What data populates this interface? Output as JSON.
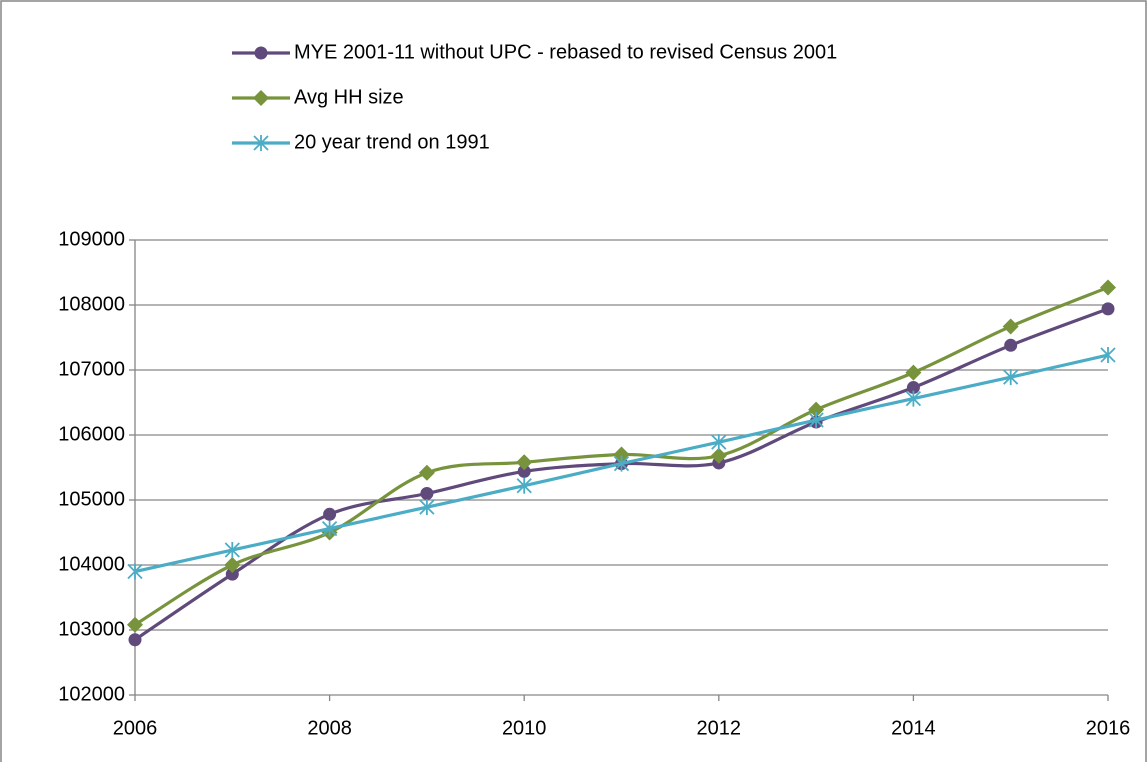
{
  "chart_data": {
    "type": "line",
    "x": [
      2006,
      2007,
      2008,
      2009,
      2010,
      2011,
      2012,
      2013,
      2014,
      2015,
      2016
    ],
    "series": [
      {
        "name": "MYE 2001-11 without UPC - rebased to revised Census 2001",
        "color": "#604a7b",
        "marker": "circle",
        "values": [
          102850,
          103860,
          104780,
          105100,
          105440,
          105560,
          105570,
          106200,
          106730,
          107380,
          107940
        ]
      },
      {
        "name": "Avg HH size",
        "color": "#77933c",
        "marker": "diamond",
        "values": [
          103080,
          104000,
          104500,
          105420,
          105580,
          105700,
          105680,
          106390,
          106960,
          107670,
          108270
        ]
      },
      {
        "name": "20 year trend on 1991",
        "color": "#4bacc6",
        "marker": "star",
        "values": [
          103900,
          104230,
          104560,
          104890,
          105220,
          105560,
          105890,
          106230,
          106560,
          106890,
          107230
        ]
      }
    ],
    "xlim": [
      2006,
      2016
    ],
    "xticks": [
      2006,
      2008,
      2010,
      2012,
      2014,
      2016
    ],
    "ylim": [
      102000,
      109000
    ],
    "yticks": [
      102000,
      103000,
      104000,
      105000,
      106000,
      107000,
      108000,
      109000
    ],
    "grid": true,
    "smooth": true,
    "legend": "top"
  }
}
